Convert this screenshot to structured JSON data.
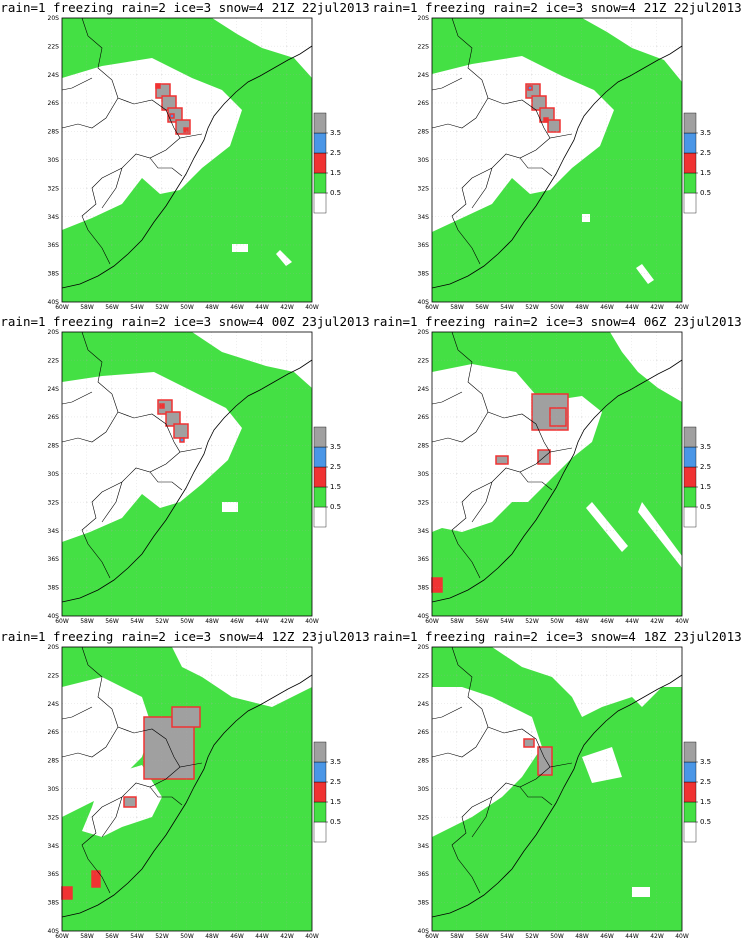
{
  "legend_text": "rain=1 freezing rain=2 ice=3 snow=4",
  "panels": [
    {
      "time": "21Z 22jul2013"
    },
    {
      "time": "21Z 22jul2013"
    },
    {
      "time": "00Z 23jul2013"
    },
    {
      "time": "06Z 23jul2013"
    },
    {
      "time": "12Z 23jul2013"
    },
    {
      "time": "18Z 23jul2013"
    }
  ],
  "lat_labels": [
    "20S",
    "22S",
    "24S",
    "26S",
    "28S",
    "30S",
    "32S",
    "34S",
    "36S",
    "38S",
    "40S"
  ],
  "lon_labels": [
    "60W",
    "58W",
    "56W",
    "54W",
    "52W",
    "50W",
    "48W",
    "46W",
    "44W",
    "42W",
    "40W"
  ],
  "colorbar": {
    "levels": [
      0.5,
      1.5,
      2.5,
      3.5
    ],
    "colors": [
      "#ffffff",
      "#44e044",
      "#f03232",
      "#4a96e6",
      "#a0a0a0"
    ]
  }
}
